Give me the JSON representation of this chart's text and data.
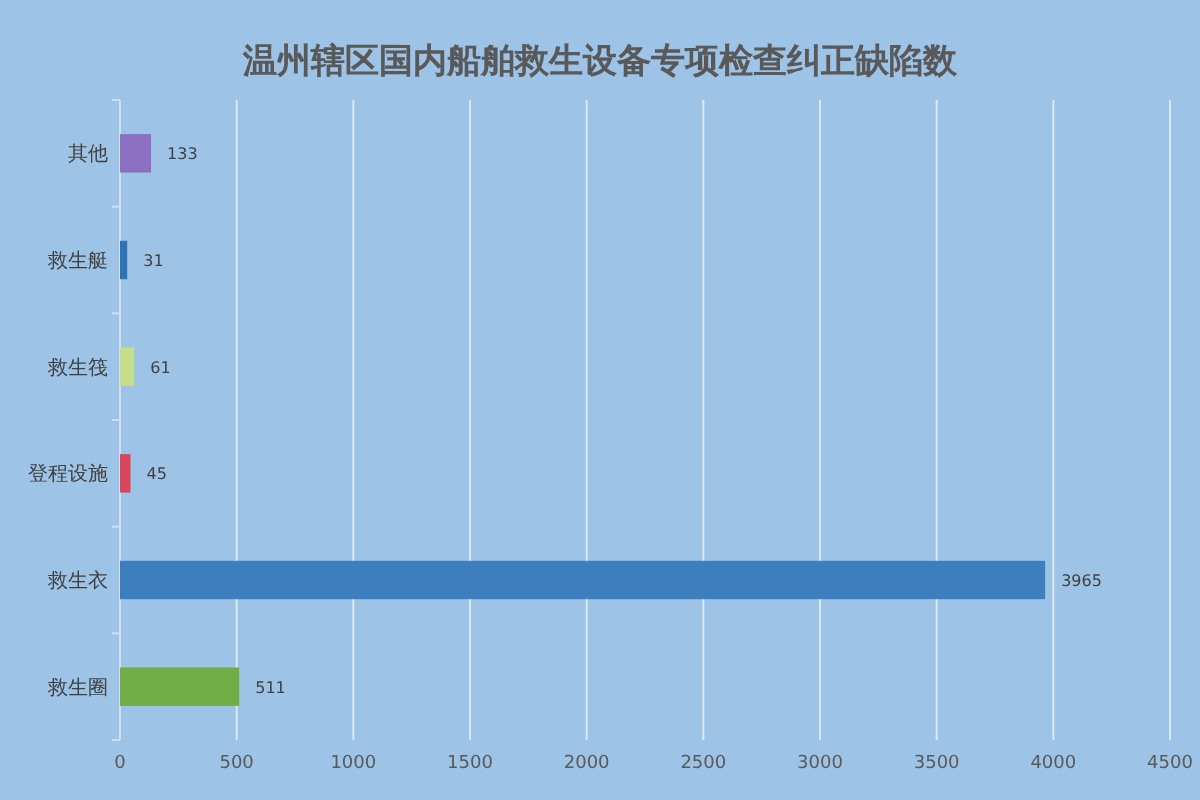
{
  "chart_data": {
    "type": "bar",
    "orientation": "horizontal",
    "title": "温州辖区国内船舶救生设备专项检查纠正缺陷数",
    "categories": [
      "其他",
      "救生艇",
      "救生筏",
      "登程设施",
      "救生衣",
      "救生圈"
    ],
    "values": [
      133,
      31,
      61,
      45,
      3965,
      511
    ],
    "colors": [
      "#8d6fc1",
      "#2e74b5",
      "#c5de8c",
      "#d9455b",
      "#3d7ebf",
      "#70ad47"
    ],
    "xlim": [
      0,
      4500
    ],
    "xticks": [
      0,
      500,
      1000,
      1500,
      2000,
      2500,
      3000,
      3500,
      4000,
      4500
    ],
    "grid": "x",
    "data_labels": true
  }
}
